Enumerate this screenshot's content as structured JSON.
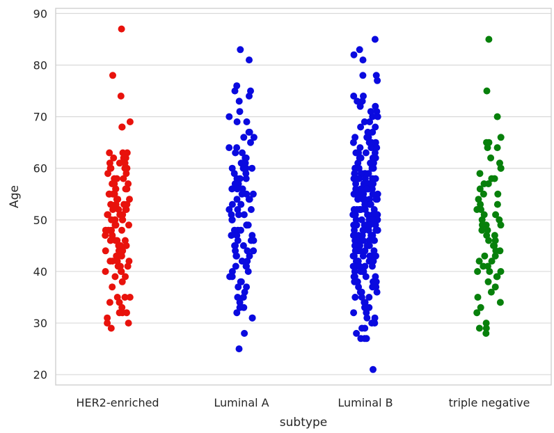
{
  "chart_data": {
    "type": "scatter",
    "plot_style": "strip",
    "xlabel": "subtype",
    "ylabel": "Age",
    "ylim": [
      18,
      91
    ],
    "y_ticks": [
      20,
      30,
      40,
      50,
      60,
      70,
      80,
      90
    ],
    "grid": "horizontal",
    "legend": "none",
    "categories": [
      "HER2-enriched",
      "Luminal A",
      "Luminal B",
      "triple negative"
    ],
    "series": [
      {
        "category": "HER2-enriched",
        "color": "#e8120c",
        "values": [
          87,
          78,
          74,
          69,
          68,
          68,
          63,
          63,
          63,
          62,
          62,
          62,
          61,
          61,
          61,
          60,
          60,
          60,
          60,
          59,
          59,
          58,
          58,
          58,
          57,
          57,
          57,
          56,
          56,
          56,
          56,
          55,
          55,
          55,
          55,
          54,
          54,
          54,
          53,
          53,
          53,
          53,
          52,
          52,
          52,
          52,
          51,
          51,
          51,
          51,
          50,
          50,
          50,
          50,
          50,
          49,
          49,
          49,
          49,
          48,
          48,
          48,
          48,
          47,
          47,
          47,
          46,
          46,
          46,
          46,
          45,
          45,
          45,
          44,
          44,
          44,
          43,
          43,
          43,
          42,
          42,
          42,
          42,
          41,
          41,
          41,
          40,
          40,
          40,
          39,
          39,
          38,
          37,
          35,
          35,
          35,
          34,
          34,
          33,
          32,
          32,
          32,
          31,
          30,
          30,
          29
        ]
      },
      {
        "category": "Luminal A",
        "color": "#0a0adf",
        "values": [
          83,
          81,
          76,
          75,
          75,
          74,
          73,
          71,
          70,
          69,
          69,
          67,
          67,
          66,
          66,
          65,
          64,
          64,
          63,
          63,
          62,
          62,
          62,
          61,
          61,
          60,
          60,
          60,
          60,
          59,
          59,
          58,
          58,
          58,
          57,
          57,
          57,
          56,
          56,
          56,
          55,
          55,
          55,
          54,
          54,
          54,
          53,
          53,
          53,
          52,
          52,
          52,
          51,
          51,
          51,
          50,
          50,
          50,
          49,
          49,
          49,
          48,
          48,
          48,
          47,
          47,
          47,
          46,
          46,
          46,
          45,
          45,
          45,
          44,
          44,
          44,
          43,
          43,
          43,
          42,
          42,
          42,
          41,
          41,
          41,
          40,
          40,
          39,
          39,
          38,
          38,
          37,
          37,
          36,
          35,
          35,
          34,
          33,
          33,
          32,
          31,
          31,
          28,
          25
        ]
      },
      {
        "category": "Luminal B",
        "color": "#0a0adf",
        "values": [
          85,
          83,
          82,
          81,
          78,
          78,
          77,
          74,
          74,
          73,
          73,
          72,
          72,
          71,
          71,
          70,
          70,
          69,
          69,
          68,
          68,
          67,
          67,
          66,
          66,
          66,
          65,
          65,
          65,
          65,
          64,
          64,
          64,
          64,
          63,
          63,
          63,
          63,
          63,
          62,
          62,
          62,
          62,
          62,
          61,
          61,
          61,
          61,
          61,
          60,
          60,
          60,
          60,
          60,
          60,
          59,
          59,
          59,
          59,
          59,
          59,
          58,
          58,
          58,
          58,
          58,
          58,
          57,
          57,
          57,
          57,
          57,
          57,
          56,
          56,
          56,
          56,
          56,
          56,
          55,
          55,
          55,
          55,
          55,
          55,
          54,
          54,
          54,
          54,
          54,
          54,
          53,
          53,
          53,
          53,
          53,
          53,
          53,
          52,
          52,
          52,
          52,
          52,
          52,
          52,
          51,
          51,
          51,
          51,
          51,
          51,
          51,
          50,
          50,
          50,
          50,
          50,
          50,
          50,
          50,
          49,
          49,
          49,
          49,
          49,
          49,
          49,
          49,
          48,
          48,
          48,
          48,
          48,
          48,
          48,
          48,
          47,
          47,
          47,
          47,
          47,
          47,
          47,
          46,
          46,
          46,
          46,
          46,
          46,
          46,
          45,
          45,
          45,
          45,
          45,
          45,
          45,
          44,
          44,
          44,
          44,
          44,
          44,
          43,
          43,
          43,
          43,
          43,
          43,
          42,
          42,
          42,
          42,
          42,
          42,
          41,
          41,
          41,
          41,
          41,
          40,
          40,
          40,
          40,
          40,
          39,
          39,
          39,
          39,
          38,
          38,
          38,
          38,
          37,
          37,
          37,
          36,
          36,
          36,
          35,
          35,
          35,
          34,
          34,
          33,
          33,
          32,
          32,
          31,
          31,
          30,
          30,
          29,
          29,
          28,
          27,
          27,
          27,
          21
        ]
      },
      {
        "category": "triple negative",
        "color": "#07800b",
        "values": [
          85,
          75,
          70,
          66,
          65,
          65,
          64,
          64,
          62,
          61,
          60,
          60,
          59,
          58,
          58,
          57,
          57,
          56,
          55,
          55,
          54,
          53,
          53,
          52,
          52,
          51,
          51,
          50,
          50,
          49,
          49,
          49,
          48,
          48,
          47,
          47,
          46,
          46,
          45,
          45,
          44,
          44,
          43,
          43,
          42,
          42,
          41,
          41,
          40,
          40,
          40,
          39,
          39,
          38,
          37,
          36,
          35,
          34,
          33,
          32,
          30,
          29,
          29,
          28
        ]
      }
    ]
  }
}
